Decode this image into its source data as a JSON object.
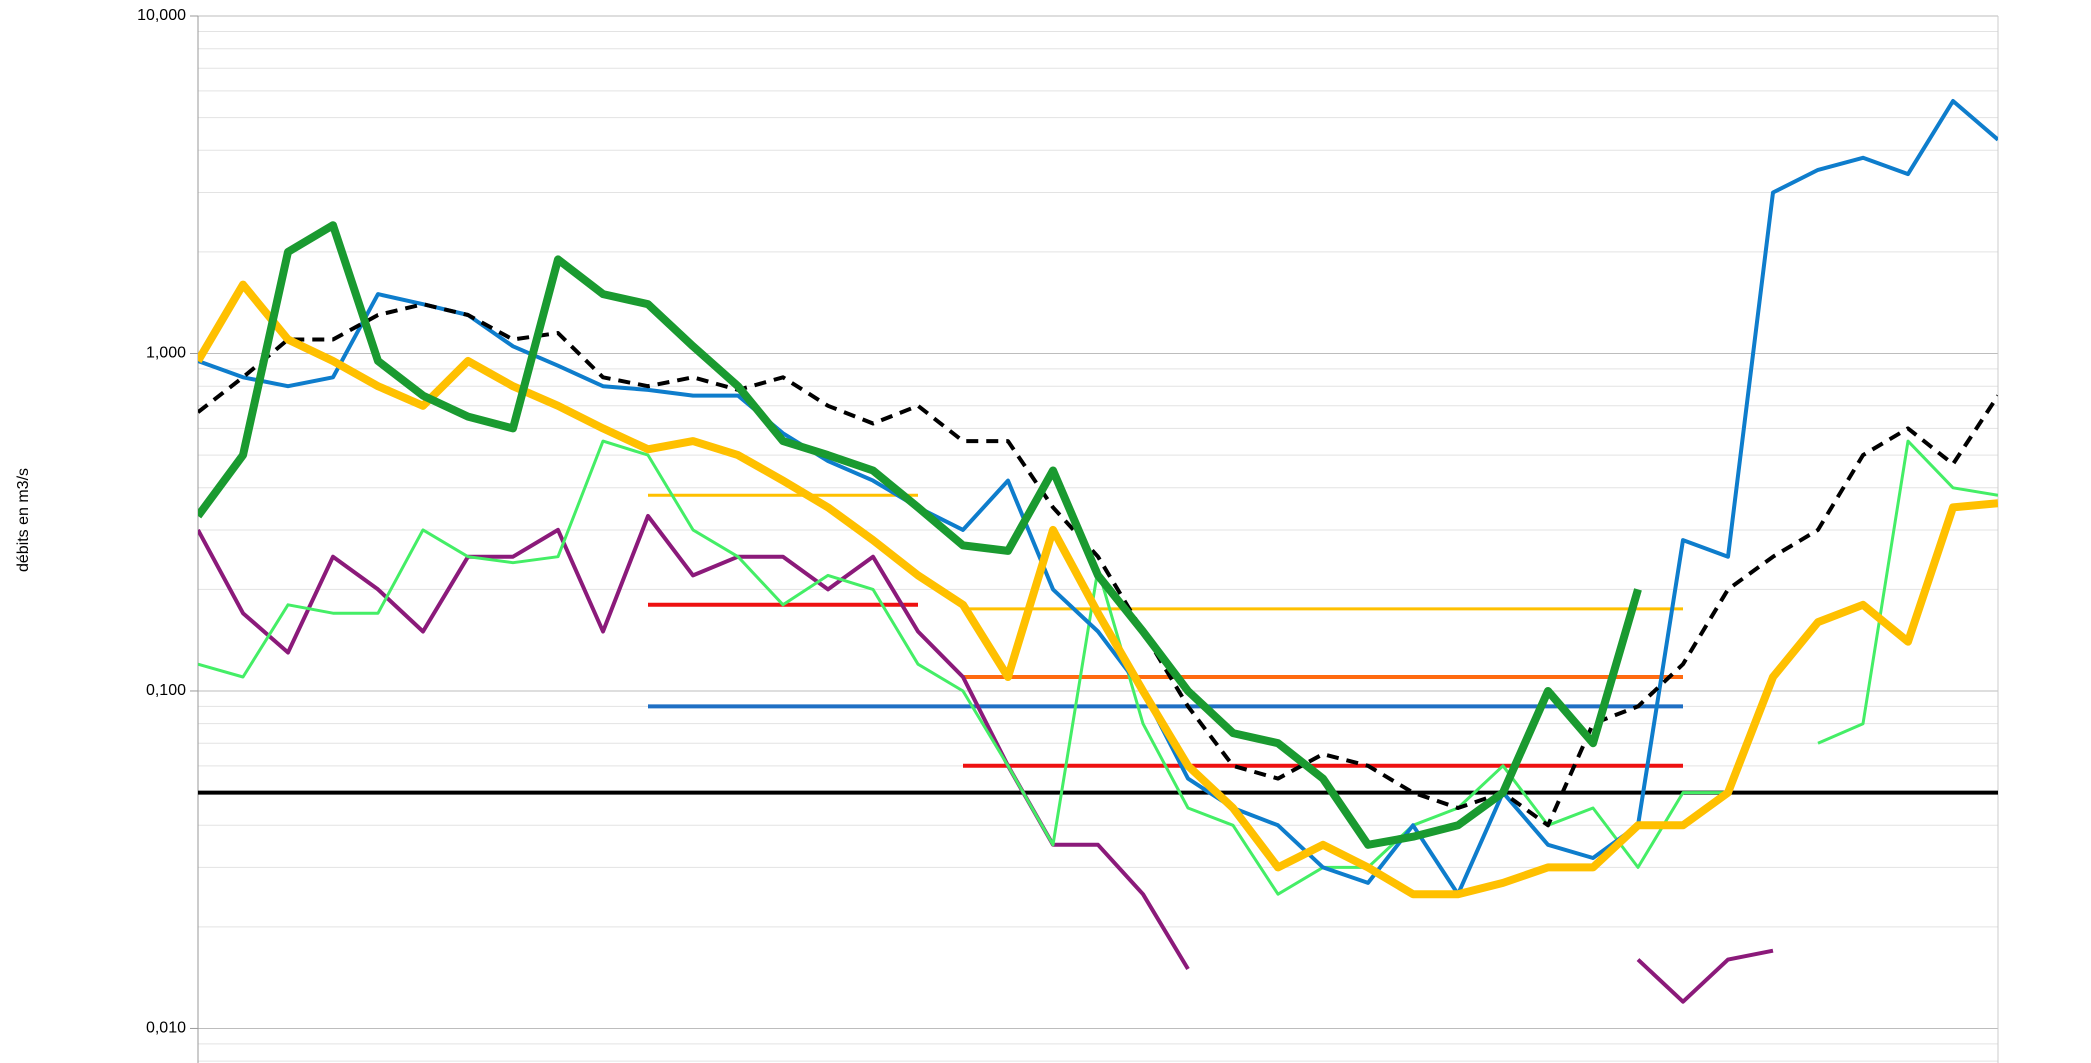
{
  "chart_data": {
    "type": "line",
    "y_label": "débits en m3/s",
    "log_y": true,
    "grid": true,
    "minor_grid": true,
    "ylim": [
      0.0079,
      10
    ],
    "yticks": [
      {
        "value": 0.01,
        "label": "0,010"
      },
      {
        "value": 0.1,
        "label": "0,100"
      },
      {
        "value": 1,
        "label": "1,000"
      },
      {
        "value": 10,
        "label": "10,000"
      }
    ],
    "series": [
      {
        "color": "#000000",
        "width": 4,
        "dash": false,
        "values": [
          0.05,
          0.05,
          0.05,
          0.05,
          0.05,
          0.05,
          0.05,
          0.05,
          0.05,
          0.05,
          0.05,
          0.05,
          0.05,
          0.05,
          0.05,
          0.05,
          0.05,
          0.05,
          0.05,
          0.05,
          0.05,
          0.05,
          0.05,
          0.05,
          0.05,
          0.05,
          0.05,
          0.05,
          0.05,
          0.05,
          0.05,
          0.05,
          0.05,
          0.05,
          0.05,
          0.05,
          0.05,
          0.05,
          0.05,
          0.05,
          0.05
        ]
      },
      {
        "color": "#ffc000",
        "width": 3,
        "dash": false,
        "values": [
          null,
          null,
          null,
          null,
          null,
          null,
          null,
          null,
          null,
          null,
          0.38,
          0.38,
          0.38,
          0.38,
          0.38,
          0.38,
          0.38,
          null,
          null,
          null,
          null,
          null,
          null,
          null,
          null,
          null,
          null,
          null,
          null,
          null,
          null,
          null,
          null,
          null,
          null,
          null,
          null,
          null,
          null,
          null,
          null
        ]
      },
      {
        "color": "#ee1111",
        "width": 4,
        "dash": false,
        "values": [
          null,
          null,
          null,
          null,
          null,
          null,
          null,
          null,
          null,
          null,
          0.18,
          0.18,
          0.18,
          0.18,
          0.18,
          0.18,
          0.18,
          null,
          null,
          null,
          null,
          null,
          null,
          null,
          null,
          null,
          null,
          null,
          null,
          null,
          null,
          null,
          null,
          null,
          null,
          null,
          null,
          null,
          null,
          null,
          null
        ]
      },
      {
        "color": "#1f6fc4",
        "width": 4,
        "dash": false,
        "values": [
          null,
          null,
          null,
          null,
          null,
          null,
          null,
          null,
          null,
          null,
          0.09,
          0.09,
          0.09,
          0.09,
          0.09,
          0.09,
          0.09,
          0.09,
          0.09,
          0.09,
          0.09,
          0.09,
          0.09,
          0.09,
          0.09,
          0.09,
          0.09,
          0.09,
          0.09,
          0.09,
          0.09,
          0.09,
          0.09,
          0.09,
          null,
          null,
          null,
          null,
          null,
          null,
          null
        ]
      },
      {
        "color": "#ffc000",
        "width": 3,
        "dash": false,
        "values": [
          null,
          null,
          null,
          null,
          null,
          null,
          null,
          null,
          null,
          null,
          null,
          null,
          null,
          null,
          null,
          null,
          null,
          0.175,
          0.175,
          0.175,
          0.175,
          0.175,
          0.175,
          0.175,
          0.175,
          0.175,
          0.175,
          0.175,
          0.175,
          0.175,
          0.175,
          0.175,
          0.175,
          0.175,
          null,
          null,
          null,
          null,
          null,
          null,
          null
        ]
      },
      {
        "color": "#ff6a10",
        "width": 4,
        "dash": false,
        "values": [
          null,
          null,
          null,
          null,
          null,
          null,
          null,
          null,
          null,
          null,
          null,
          null,
          null,
          null,
          null,
          null,
          null,
          0.11,
          0.11,
          0.11,
          0.11,
          0.11,
          0.11,
          0.11,
          0.11,
          0.11,
          0.11,
          0.11,
          0.11,
          0.11,
          0.11,
          0.11,
          0.11,
          0.11,
          null,
          null,
          null,
          null,
          null,
          null,
          null
        ]
      },
      {
        "color": "#ee1111",
        "width": 4,
        "dash": false,
        "values": [
          null,
          null,
          null,
          null,
          null,
          null,
          null,
          null,
          null,
          null,
          null,
          null,
          null,
          null,
          null,
          null,
          null,
          0.06,
          0.06,
          0.06,
          0.06,
          0.06,
          0.06,
          0.06,
          0.06,
          0.06,
          0.06,
          0.06,
          0.06,
          0.06,
          0.06,
          0.06,
          0.06,
          0.06,
          null,
          null,
          null,
          null,
          null,
          null,
          null
        ]
      },
      {
        "color": "#8b1a7a",
        "width": 4,
        "dash": false,
        "values": [
          0.3,
          0.17,
          0.13,
          0.25,
          0.2,
          0.15,
          0.25,
          0.25,
          0.3,
          0.15,
          0.33,
          0.22,
          0.25,
          0.25,
          0.2,
          0.25,
          0.15,
          0.11,
          0.06,
          0.035,
          0.035,
          0.025,
          0.015,
          null,
          null,
          null,
          null,
          null,
          null,
          null,
          null,
          null,
          0.016,
          0.012,
          0.016,
          0.017,
          null,
          null,
          null,
          null,
          null
        ]
      },
      {
        "color": "#44ee66",
        "width": 3,
        "dash": false,
        "values": [
          0.12,
          0.11,
          0.18,
          0.17,
          0.17,
          0.3,
          0.25,
          0.24,
          0.25,
          0.55,
          0.5,
          0.3,
          0.25,
          0.18,
          0.22,
          0.2,
          0.12,
          0.1,
          0.06,
          0.035,
          0.23,
          0.08,
          0.045,
          0.04,
          0.025,
          0.03,
          0.03,
          0.04,
          0.045,
          0.06,
          0.04,
          0.045,
          0.03,
          0.05,
          0.05,
          null,
          0.07,
          0.08,
          0.55,
          0.4,
          0.38
        ]
      },
      {
        "color": "#0e7dcc",
        "width": 4,
        "dash": false,
        "values": [
          0.95,
          0.85,
          0.8,
          0.85,
          1.5,
          1.4,
          1.3,
          1.05,
          0.92,
          0.8,
          0.78,
          0.75,
          0.75,
          0.58,
          0.48,
          0.42,
          0.35,
          0.3,
          0.42,
          0.2,
          0.15,
          0.1,
          0.055,
          0.045,
          0.04,
          0.03,
          0.027,
          0.04,
          0.025,
          0.05,
          0.035,
          0.032,
          0.04,
          0.28,
          0.25,
          3.0,
          3.5,
          3.8,
          3.4,
          5.6,
          4.3
        ]
      },
      {
        "color": "#000000",
        "width": 4,
        "dash": true,
        "values": [
          0.67,
          0.85,
          1.1,
          1.1,
          1.3,
          1.4,
          1.3,
          1.1,
          1.15,
          0.85,
          0.8,
          0.85,
          0.78,
          0.85,
          0.7,
          0.62,
          0.7,
          0.55,
          0.55,
          0.35,
          0.25,
          0.15,
          0.09,
          0.06,
          0.055,
          0.065,
          0.06,
          0.05,
          0.045,
          0.05,
          0.04,
          0.08,
          0.09,
          0.12,
          0.2,
          0.25,
          0.3,
          0.5,
          0.6,
          0.47,
          0.75
        ]
      },
      {
        "color": "#ffc000",
        "width": 8,
        "dash": false,
        "values": [
          0.95,
          1.6,
          1.1,
          0.95,
          0.8,
          0.7,
          0.95,
          0.8,
          0.7,
          0.6,
          0.52,
          0.55,
          0.5,
          0.42,
          0.35,
          0.28,
          0.22,
          0.18,
          0.11,
          0.3,
          0.17,
          0.1,
          0.06,
          0.045,
          0.03,
          0.035,
          0.03,
          0.025,
          0.025,
          0.027,
          0.03,
          0.03,
          0.04,
          0.04,
          0.05,
          0.11,
          0.16,
          0.18,
          0.14,
          0.35,
          0.36
        ]
      },
      {
        "color": "#1a9a30",
        "width": 8,
        "dash": false,
        "values": [
          0.33,
          0.5,
          2.0,
          2.4,
          0.95,
          0.75,
          0.65,
          0.6,
          1.9,
          1.5,
          1.4,
          1.05,
          0.8,
          0.55,
          0.5,
          0.45,
          0.35,
          0.27,
          0.26,
          0.45,
          0.22,
          0.15,
          0.1,
          0.075,
          0.07,
          0.055,
          0.035,
          0.037,
          0.04,
          0.05,
          0.1,
          0.07,
          0.2,
          null,
          null,
          null,
          null,
          null,
          null,
          null,
          null
        ]
      }
    ]
  }
}
